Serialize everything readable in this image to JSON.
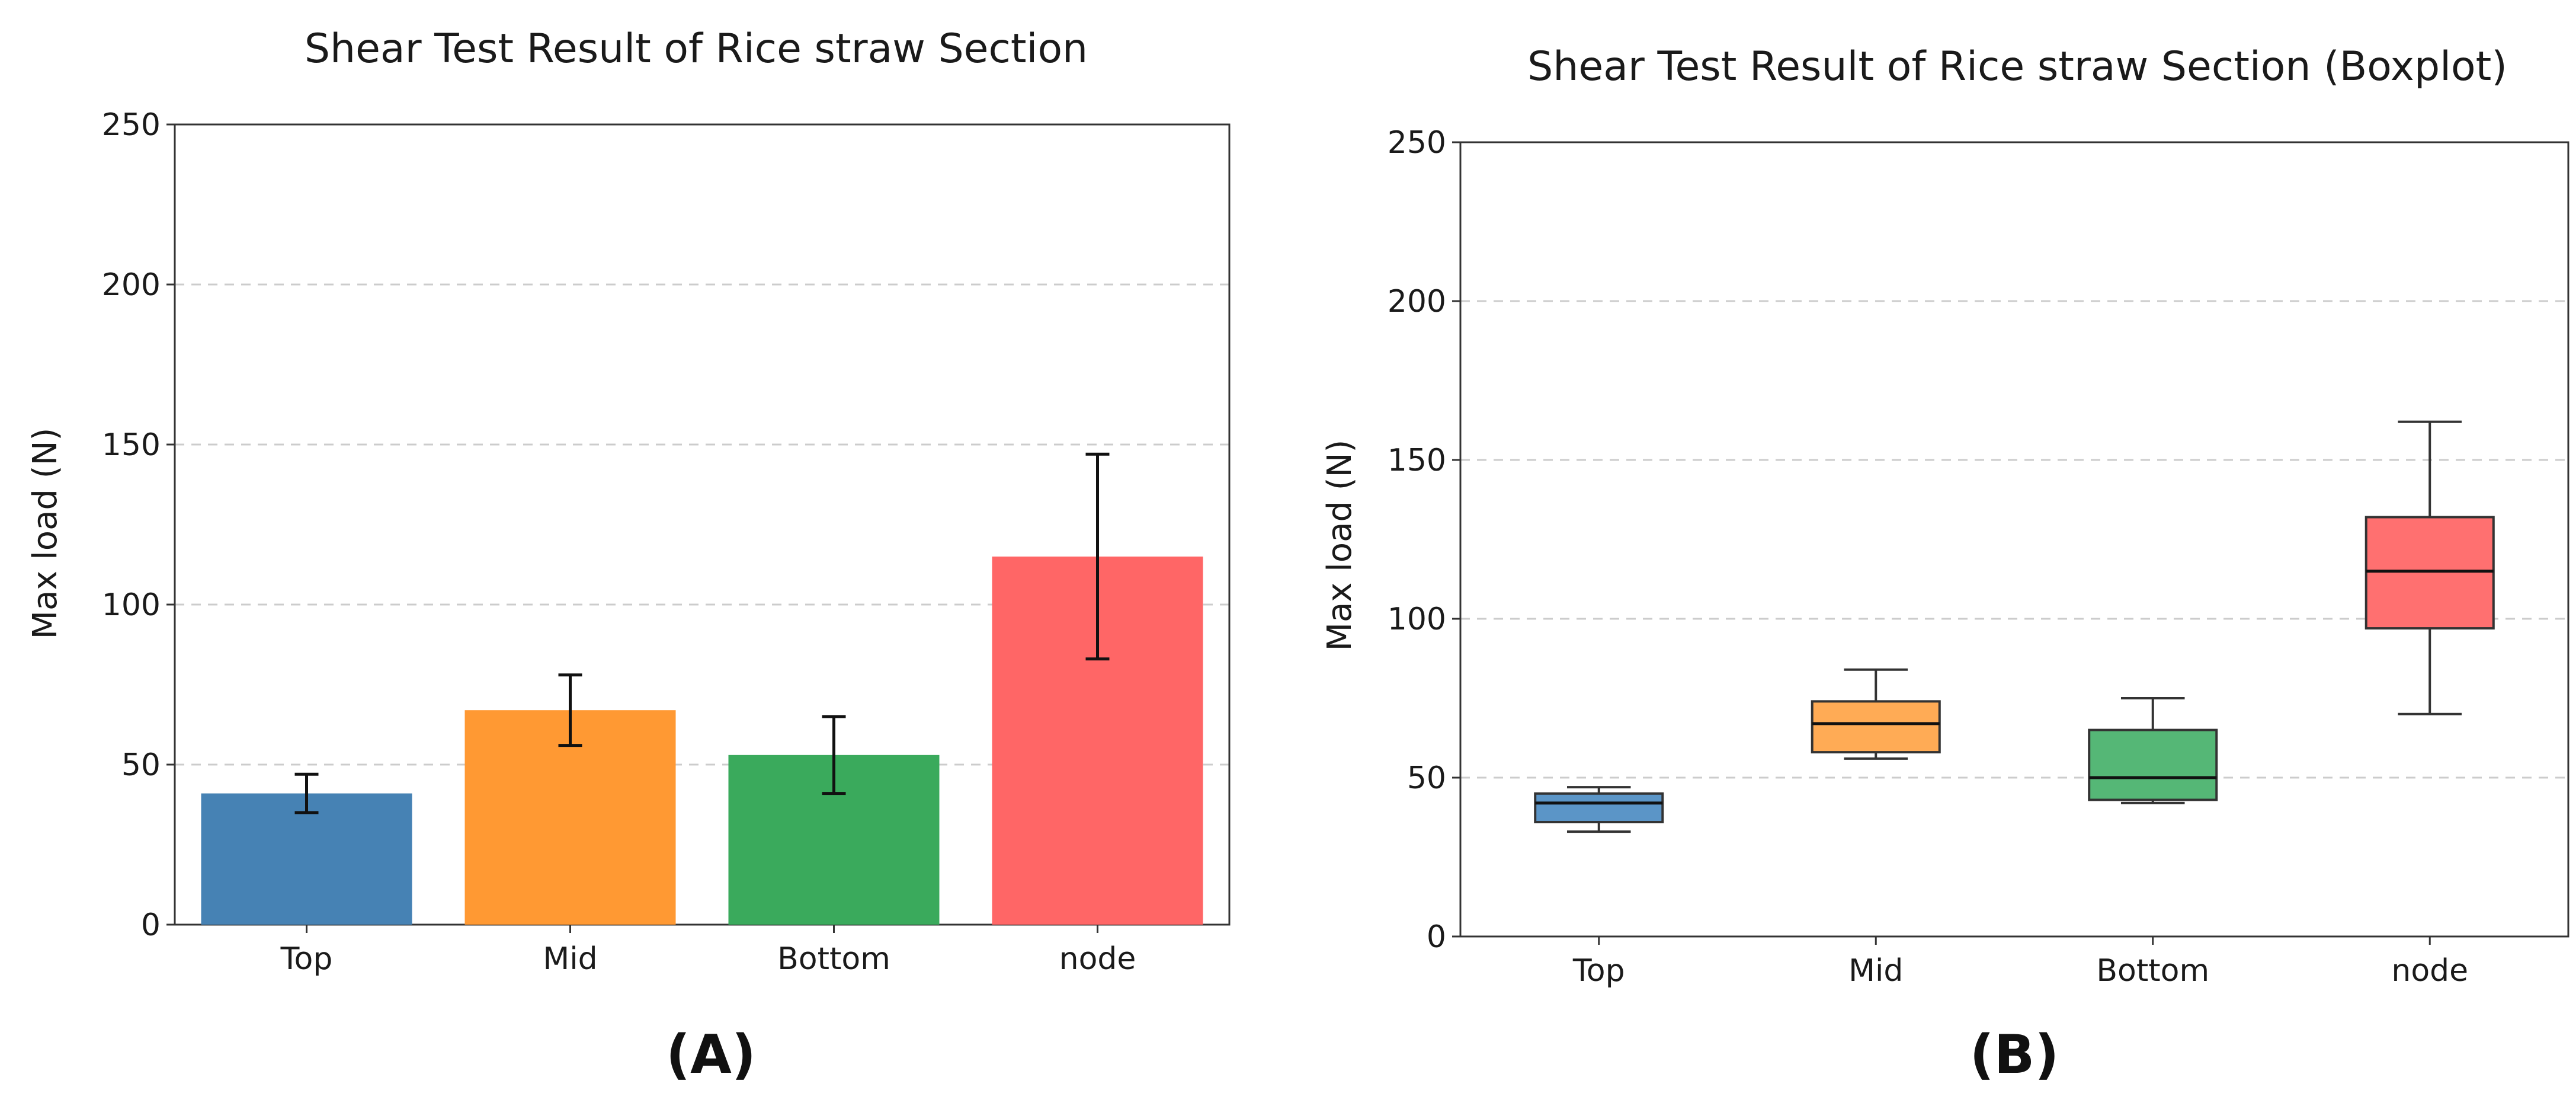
{
  "chart_data": [
    {
      "type": "bar",
      "title": "Shear Test Result of Rice straw Section",
      "xlabel": "",
      "ylabel": "Max load (N)",
      "ylim": [
        0,
        250
      ],
      "yticks": [
        0,
        50,
        100,
        150,
        200,
        250
      ],
      "grid": true,
      "categories": [
        "Top",
        "Mid",
        "Bottom",
        "node"
      ],
      "values": [
        41,
        67,
        53,
        115
      ],
      "errors": [
        6,
        11,
        12,
        32
      ],
      "colors": [
        "#4682b4",
        "#ff9933",
        "#3aaa5c",
        "#ff6666"
      ],
      "panel_label": "(A)"
    },
    {
      "type": "box",
      "title": "Shear Test Result of Rice straw Section (Boxplot)",
      "xlabel": "",
      "ylabel": "Max load (N)",
      "ylim": [
        0,
        250
      ],
      "yticks": [
        0,
        50,
        100,
        150,
        200,
        250
      ],
      "grid": true,
      "categories": [
        "Top",
        "Mid",
        "Bottom",
        "node"
      ],
      "boxes": [
        {
          "min": 33,
          "q1": 36,
          "median": 42,
          "q3": 45,
          "max": 47
        },
        {
          "min": 56,
          "q1": 58,
          "median": 67,
          "q3": 74,
          "max": 84
        },
        {
          "min": 42,
          "q1": 43,
          "median": 50,
          "q3": 65,
          "max": 75
        },
        {
          "min": 70,
          "q1": 97,
          "median": 115,
          "q3": 132,
          "max": 162
        }
      ],
      "colors": [
        "#5b95c7",
        "#ffab55",
        "#55b776",
        "#ff7070"
      ],
      "panel_label": "(B)"
    }
  ]
}
